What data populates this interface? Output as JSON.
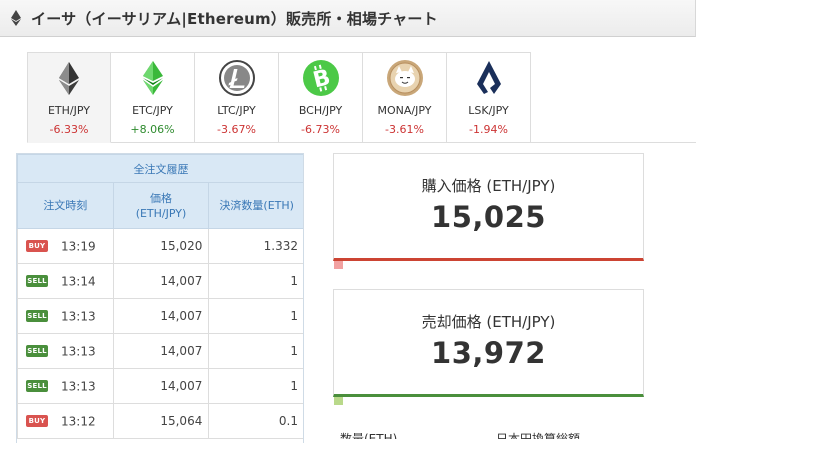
{
  "header": {
    "title": "イーサ（イーサリアム|Ethereum）販売所・相場チャート"
  },
  "tabs": [
    {
      "pair": "ETH/JPY",
      "change": "-6.33%",
      "dir": "neg",
      "icon": "ethereum-icon"
    },
    {
      "pair": "ETC/JPY",
      "change": "+8.06%",
      "dir": "pos",
      "icon": "ethereum-classic-icon"
    },
    {
      "pair": "LTC/JPY",
      "change": "-3.67%",
      "dir": "neg",
      "icon": "litecoin-icon"
    },
    {
      "pair": "BCH/JPY",
      "change": "-6.73%",
      "dir": "neg",
      "icon": "bitcoin-cash-icon"
    },
    {
      "pair": "MONA/JPY",
      "change": "-3.61%",
      "dir": "neg",
      "icon": "monacoin-icon"
    },
    {
      "pair": "LSK/JPY",
      "change": "-1.94%",
      "dir": "neg",
      "icon": "lisk-icon"
    }
  ],
  "history": {
    "caption": "全注文履歴",
    "columns": {
      "time": "注文時刻",
      "price": "価格\n(ETH/JPY)",
      "qty": "決済数量(ETH)"
    },
    "rows": [
      {
        "side": "BUY",
        "time": "13:19",
        "price": "15,020",
        "qty": "1.332"
      },
      {
        "side": "SELL",
        "time": "13:14",
        "price": "14,007",
        "qty": "1"
      },
      {
        "side": "SELL",
        "time": "13:13",
        "price": "14,007",
        "qty": "1"
      },
      {
        "side": "SELL",
        "time": "13:13",
        "price": "14,007",
        "qty": "1"
      },
      {
        "side": "SELL",
        "time": "13:13",
        "price": "14,007",
        "qty": "1"
      },
      {
        "side": "BUY",
        "time": "13:12",
        "price": "15,064",
        "qty": "0.1"
      }
    ]
  },
  "buy_box": {
    "label": "購入価格 (ETH/JPY)",
    "value": "15,025"
  },
  "sell_box": {
    "label": "売却価格 (ETH/JPY)",
    "value": "13,972"
  },
  "bottom": {
    "left": "数量(ETH)",
    "right": "日本円換算総額"
  },
  "colors": {
    "negative": "#cc3333",
    "positive": "#2e8b2e",
    "buy": "#d9534f",
    "sell": "#4a8f3c",
    "table_header": "#d9e8f5"
  }
}
